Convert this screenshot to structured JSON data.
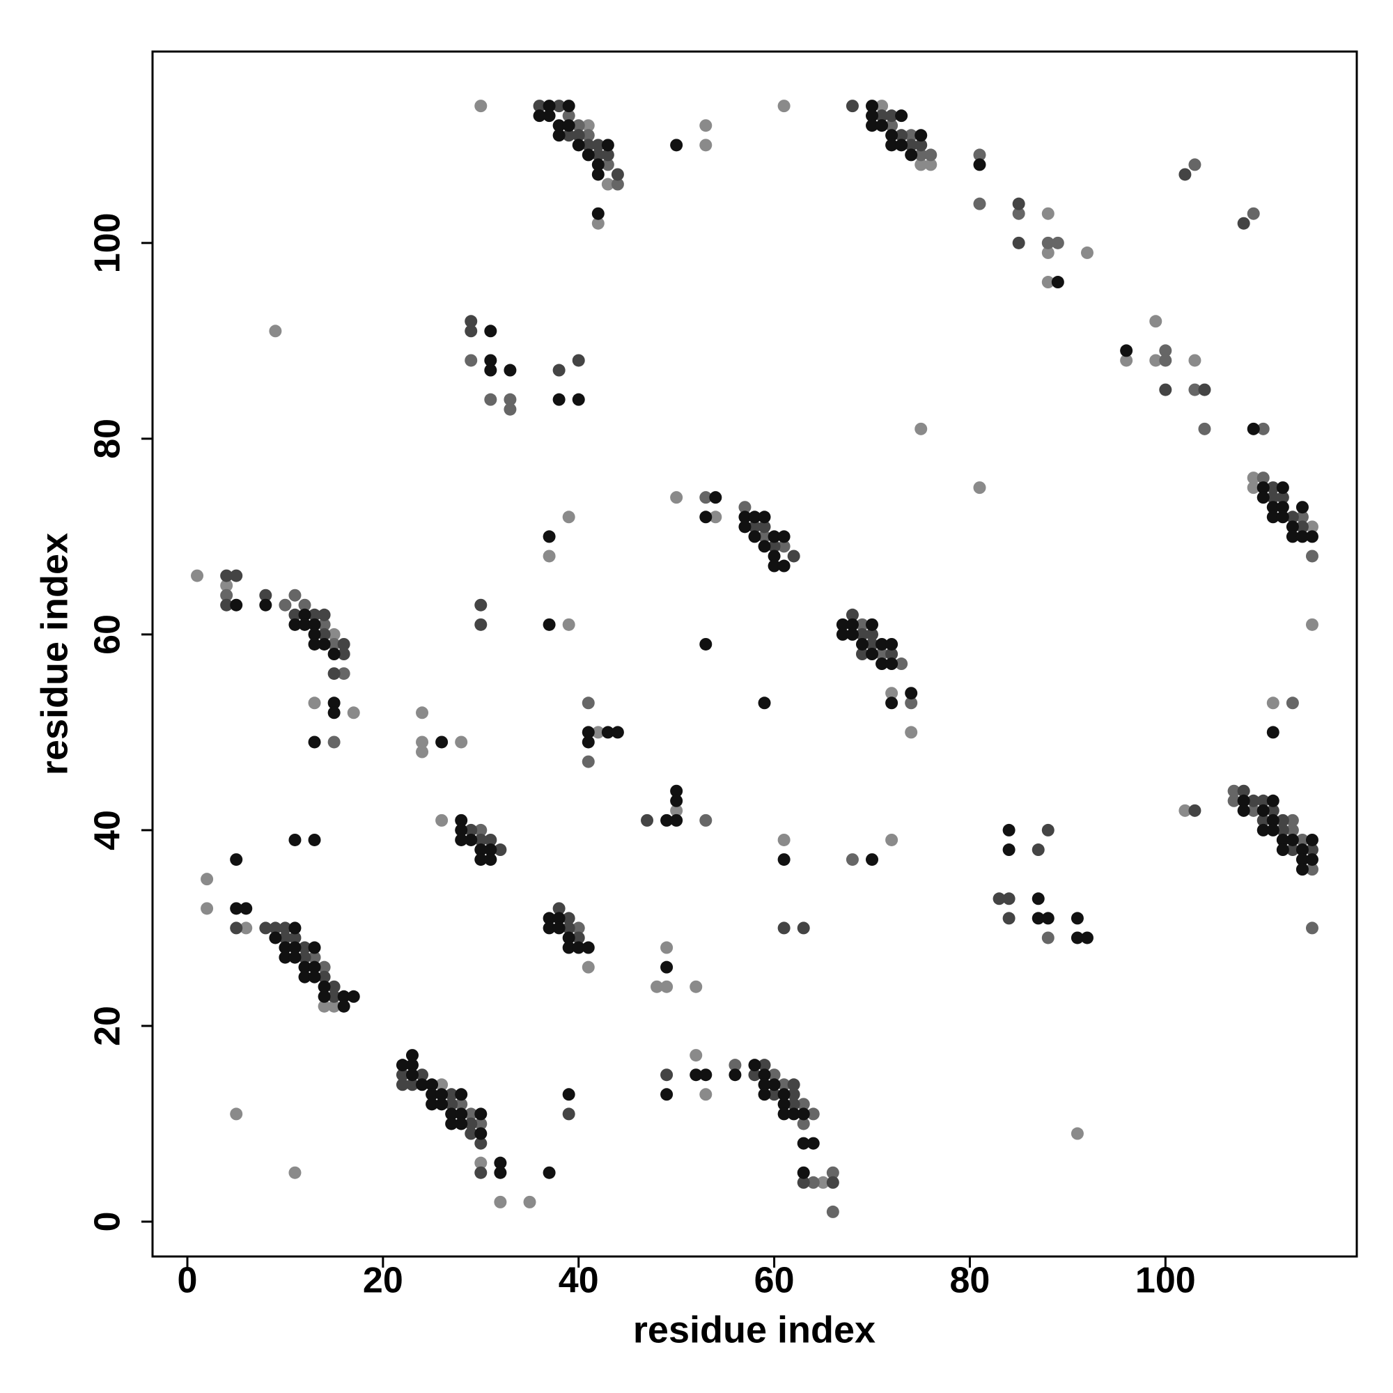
{
  "chart_data": {
    "type": "scatter",
    "xlabel": "residue index",
    "ylabel": "residue index",
    "xlim": [
      -3.56,
      119.56
    ],
    "ylim": [
      -3.56,
      119.56
    ],
    "xticks": [
      0,
      20,
      40,
      60,
      80,
      100
    ],
    "yticks": [
      0,
      20,
      40,
      60,
      80,
      100
    ],
    "grid": false,
    "series": [
      {
        "color": "#8a8a8a",
        "x": [
          30,
          41,
          43,
          42,
          53,
          53,
          61,
          71,
          75,
          76,
          88,
          88,
          88,
          92,
          9,
          96,
          99,
          99,
          103,
          75,
          81,
          50,
          54,
          37,
          39,
          39,
          109,
          109,
          115,
          115,
          1,
          4,
          15,
          17,
          13,
          72,
          74,
          24,
          24,
          24,
          28,
          42,
          111,
          26,
          2,
          50,
          61,
          72,
          102,
          2,
          6,
          14,
          15,
          41,
          49,
          48,
          49,
          52,
          26,
          30,
          32,
          35,
          5,
          11,
          52,
          53,
          65,
          91
        ],
        "values": [
          114,
          112,
          106,
          102,
          112,
          110,
          114,
          114,
          108,
          108,
          103,
          99,
          96,
          99,
          91,
          88,
          92,
          88,
          88,
          81,
          75,
          74,
          72,
          68,
          72,
          61,
          76,
          75,
          71,
          61,
          66,
          65,
          60,
          52,
          53,
          54,
          50,
          52,
          49,
          48,
          49,
          50,
          53,
          41,
          35,
          42,
          39,
          39,
          42,
          32,
          30,
          22,
          22,
          26,
          28,
          24,
          24,
          24,
          14,
          6,
          2,
          2,
          11,
          5,
          17,
          13,
          4,
          9
        ]
      },
      {
        "color": "#666666",
        "x": [
          39,
          40,
          41,
          43,
          44,
          72,
          74,
          75,
          76,
          81,
          81,
          85,
          88,
          89,
          103,
          109,
          29,
          31,
          33,
          33,
          100,
          100,
          103,
          104,
          110,
          53,
          57,
          59,
          61,
          110,
          114,
          115,
          4,
          10,
          11,
          12,
          14,
          15,
          16,
          15,
          69,
          71,
          73,
          74,
          41,
          41,
          113,
          30,
          53,
          68,
          107,
          107,
          109,
          113,
          113,
          114,
          115,
          115,
          13,
          14,
          40,
          28,
          29,
          30,
          56,
          60,
          61,
          63,
          64,
          63,
          66,
          64,
          66,
          88
        ],
        "values": [
          113,
          112,
          111,
          108,
          106,
          112,
          111,
          109,
          109,
          109,
          104,
          103,
          100,
          100,
          108,
          103,
          88,
          84,
          84,
          83,
          89,
          88,
          85,
          81,
          81,
          74,
          73,
          70,
          69,
          76,
          72,
          68,
          64,
          63,
          64,
          63,
          61,
          59,
          56,
          49,
          61,
          58,
          57,
          53,
          53,
          47,
          53,
          40,
          41,
          37,
          44,
          43,
          42,
          41,
          40,
          39,
          36,
          30,
          27,
          26,
          30,
          12,
          11,
          10,
          16,
          15,
          14,
          12,
          11,
          10,
          5,
          4,
          1,
          29
        ]
      },
      {
        "color": "#444444",
        "x": [
          36,
          38,
          39,
          40,
          41,
          42,
          42,
          43,
          44,
          68,
          71,
          72,
          73,
          74,
          75,
          85,
          85,
          102,
          108,
          29,
          29,
          38,
          40,
          100,
          104,
          58,
          59,
          60,
          62,
          30,
          30,
          111,
          111,
          112,
          113,
          114,
          4,
          5,
          4,
          8,
          11,
          13,
          14,
          14,
          16,
          16,
          15,
          68,
          69,
          70,
          70,
          69,
          72,
          29,
          30,
          31,
          32,
          47,
          87,
          88,
          83,
          84,
          84,
          103,
          108,
          109,
          110,
          111,
          112,
          110,
          112,
          113,
          115,
          5,
          8,
          9,
          10,
          10,
          11,
          12,
          12,
          14,
          15,
          15,
          38,
          39,
          39,
          40,
          61,
          63,
          22,
          24,
          22,
          23,
          27,
          27,
          29,
          29,
          30,
          30,
          39,
          49,
          59,
          58,
          62,
          60,
          62,
          62,
          63,
          66
        ],
        "values": [
          114,
          114,
          111,
          111,
          110,
          110,
          109,
          109,
          107,
          114,
          113,
          113,
          111,
          110,
          110,
          104,
          100,
          107,
          102,
          92,
          91,
          87,
          88,
          85,
          85,
          71,
          71,
          69,
          68,
          63,
          61,
          75,
          74,
          74,
          72,
          71,
          66,
          66,
          63,
          64,
          62,
          62,
          62,
          60,
          59,
          58,
          56,
          62,
          60,
          60,
          59,
          58,
          58,
          40,
          39,
          39,
          38,
          41,
          38,
          40,
          33,
          33,
          31,
          42,
          44,
          43,
          43,
          42,
          41,
          41,
          40,
          38,
          38,
          30,
          30,
          30,
          30,
          29,
          29,
          28,
          27,
          25,
          24,
          23,
          32,
          31,
          30,
          29,
          30,
          30,
          15,
          15,
          14,
          14,
          13,
          12,
          10,
          9,
          8,
          5,
          11,
          15,
          16,
          15,
          14,
          13,
          13,
          12,
          4,
          4
        ]
      },
      {
        "color": "#111111",
        "x": [
          37,
          39,
          36,
          37,
          38,
          38,
          39,
          40,
          41,
          42,
          42,
          43,
          42,
          50,
          70,
          70,
          70,
          71,
          72,
          72,
          73,
          73,
          74,
          75,
          81,
          89,
          31,
          31,
          31,
          33,
          38,
          40,
          96,
          109,
          54,
          53,
          57,
          58,
          59,
          57,
          58,
          60,
          61,
          59,
          60,
          60,
          61,
          37,
          37,
          53,
          59,
          110,
          112,
          110,
          111,
          112,
          114,
          111,
          112,
          113,
          113,
          114,
          115,
          5,
          8,
          12,
          11,
          12,
          13,
          13,
          13,
          14,
          15,
          15,
          15,
          13,
          67,
          68,
          70,
          67,
          68,
          69,
          71,
          72,
          70,
          71,
          72,
          74,
          72,
          26,
          41,
          41,
          43,
          44,
          111,
          28,
          28,
          28,
          29,
          30,
          30,
          31,
          31,
          11,
          13,
          5,
          49,
          50,
          50,
          50,
          61,
          70,
          84,
          84,
          87,
          87,
          88,
          91,
          91,
          92,
          108,
          111,
          108,
          110,
          111,
          110,
          111,
          112,
          113,
          115,
          112,
          114,
          114,
          115,
          114,
          5,
          6,
          11,
          9,
          10,
          11,
          13,
          10,
          11,
          12,
          13,
          12,
          13,
          14,
          14,
          16,
          17,
          16,
          37,
          38,
          37,
          38,
          39,
          39,
          40,
          41,
          49,
          22,
          23,
          23,
          23,
          24,
          25,
          25,
          26,
          28,
          25,
          26,
          27,
          28,
          30,
          27,
          28,
          30,
          32,
          32,
          37,
          39,
          49,
          52,
          53,
          56,
          58,
          59,
          59,
          60,
          59,
          61,
          61,
          61,
          62,
          63,
          63,
          64,
          63
        ],
        "values": [
          114,
          114,
          113,
          113,
          112,
          111,
          112,
          110,
          109,
          108,
          107,
          110,
          103,
          110,
          114,
          113,
          112,
          112,
          111,
          110,
          113,
          110,
          109,
          111,
          108,
          96,
          91,
          88,
          87,
          87,
          84,
          84,
          89,
          81,
          74,
          72,
          72,
          72,
          72,
          71,
          70,
          70,
          70,
          69,
          68,
          67,
          67,
          70,
          61,
          59,
          53,
          75,
          75,
          74,
          73,
          73,
          73,
          72,
          72,
          71,
          70,
          70,
          70,
          63,
          63,
          62,
          61,
          61,
          61,
          60,
          59,
          59,
          58,
          53,
          52,
          49,
          61,
          61,
          61,
          60,
          60,
          59,
          59,
          59,
          58,
          57,
          57,
          54,
          53,
          49,
          50,
          49,
          50,
          50,
          50,
          41,
          40,
          39,
          39,
          38,
          37,
          38,
          37,
          39,
          39,
          37,
          41,
          44,
          43,
          41,
          37,
          37,
          40,
          38,
          33,
          31,
          31,
          31,
          29,
          29,
          43,
          43,
          42,
          42,
          41,
          40,
          40,
          39,
          39,
          39,
          38,
          38,
          37,
          37,
          36,
          32,
          32,
          30,
          29,
          28,
          28,
          28,
          27,
          27,
          26,
          26,
          25,
          25,
          24,
          23,
          23,
          23,
          22,
          31,
          31,
          30,
          30,
          29,
          28,
          28,
          28,
          26,
          16,
          17,
          16,
          15,
          14,
          14,
          13,
          13,
          13,
          12,
          12,
          11,
          11,
          11,
          10,
          10,
          9,
          6,
          5,
          5,
          13,
          13,
          15,
          15,
          15,
          16,
          15,
          14,
          14,
          13,
          13,
          12,
          11,
          11,
          11,
          8,
          8,
          5
        ]
      }
    ]
  }
}
